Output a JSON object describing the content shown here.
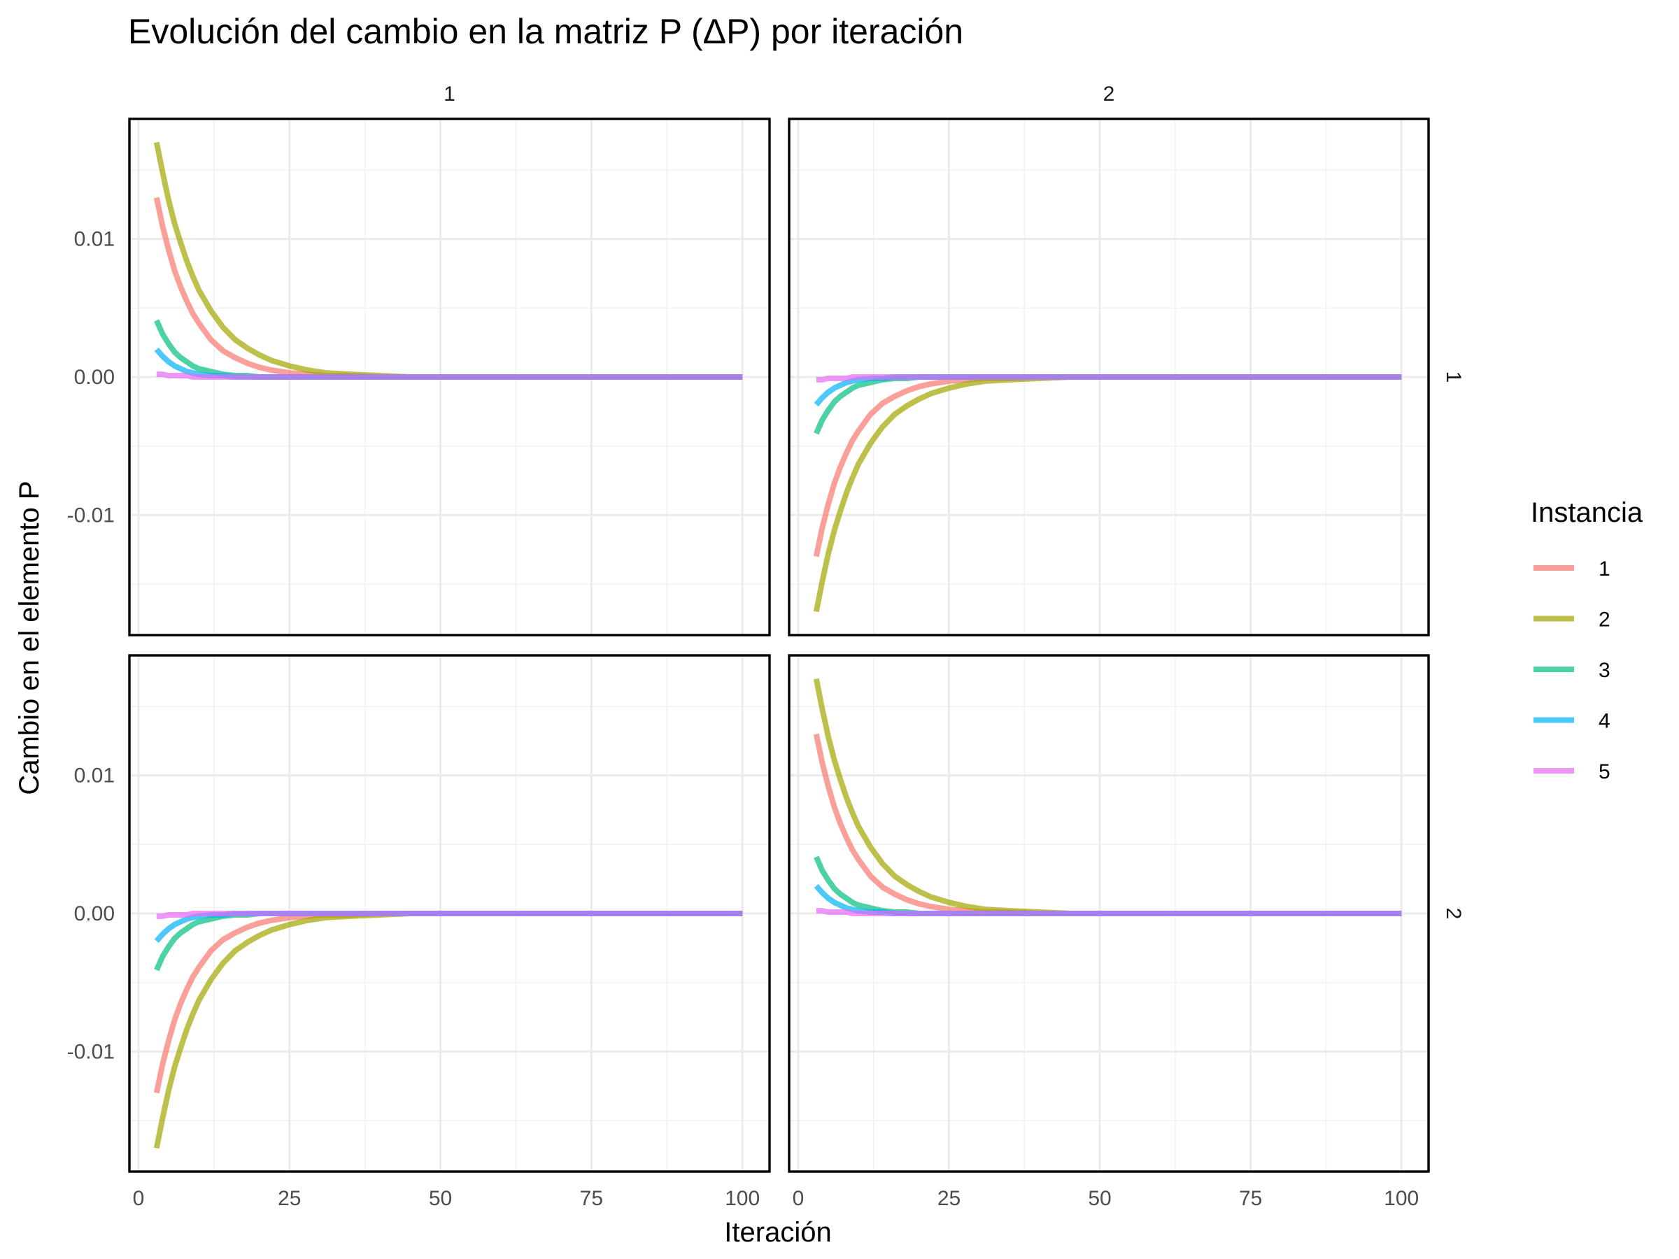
{
  "chart_data": {
    "type": "line",
    "title": "Evolución del cambio en la matriz P (ΔP) por iteración",
    "xlabel": "Iteración",
    "ylabel": "Cambio en el elemento P",
    "xlim": [
      -1.5,
      104.5
    ],
    "ylim": [
      -0.0187,
      0.0187
    ],
    "x_ticks": [
      0,
      25,
      50,
      75,
      100
    ],
    "x_tick_labels": [
      "0",
      "25",
      "50",
      "75",
      "100"
    ],
    "y_ticks": [
      -0.01,
      0.0,
      0.01
    ],
    "y_tick_labels": [
      "-0.01",
      "0.00",
      "0.01"
    ],
    "grid": true,
    "facet_columns": [
      "1",
      "2"
    ],
    "facet_rows": [
      "1",
      "2"
    ],
    "legend": {
      "title": "Instancia",
      "position": "right",
      "entries": [
        {
          "label": "1",
          "color": "#F8766D"
        },
        {
          "label": "2",
          "color": "#A3A500"
        },
        {
          "label": "3",
          "color": "#00BF7D"
        },
        {
          "label": "4",
          "color": "#00B0F6"
        },
        {
          "label": "5",
          "color": "#E76BF3"
        }
      ]
    },
    "x": [
      3,
      4,
      5,
      6,
      7,
      8,
      9,
      10,
      12,
      14,
      16,
      18,
      20,
      22,
      25,
      28,
      31,
      35,
      40,
      45,
      50,
      60,
      70,
      80,
      90,
      100
    ],
    "panels": [
      {
        "row": "1",
        "col": "1",
        "series": [
          {
            "name": "1",
            "values": [
              0.013,
              0.0109,
              0.0092,
              0.0077,
              0.0065,
              0.0055,
              0.0046,
              0.0039,
              0.0027,
              0.0019,
              0.0014,
              0.001,
              0.0007,
              0.0005,
              0.0003,
              0.0002,
              0.0001,
              0.0001,
              0.0,
              0.0,
              0.0,
              0.0,
              0.0,
              0.0,
              0.0,
              0.0
            ]
          },
          {
            "name": "2",
            "values": [
              0.017,
              0.0148,
              0.0128,
              0.0111,
              0.0097,
              0.0084,
              0.0073,
              0.0063,
              0.0048,
              0.0036,
              0.0027,
              0.0021,
              0.0016,
              0.0012,
              0.0008,
              0.0005,
              0.0003,
              0.0002,
              0.0001,
              0.0,
              0.0,
              0.0,
              0.0,
              0.0,
              0.0,
              0.0
            ]
          },
          {
            "name": "3",
            "values": [
              0.0041,
              0.0031,
              0.0024,
              0.0018,
              0.0014,
              0.0011,
              0.0008,
              0.0006,
              0.0004,
              0.0002,
              0.0001,
              0.0001,
              0.0,
              0.0,
              0.0,
              0.0,
              0.0,
              0.0,
              0.0,
              0.0,
              0.0,
              0.0,
              0.0,
              0.0,
              0.0,
              0.0
            ]
          },
          {
            "name": "4",
            "values": [
              0.002,
              0.0015,
              0.0011,
              0.0008,
              0.0006,
              0.0004,
              0.0003,
              0.0002,
              0.0001,
              0.0001,
              0.0,
              0.0,
              0.0,
              0.0,
              0.0,
              0.0,
              0.0,
              0.0,
              0.0,
              0.0,
              0.0,
              0.0,
              0.0,
              0.0,
              0.0,
              0.0
            ]
          },
          {
            "name": "5",
            "values": [
              0.0002,
              0.0002,
              0.0001,
              0.0001,
              0.0001,
              0.0001,
              0.0,
              0.0,
              0.0,
              0.0,
              0.0,
              0.0,
              0.0,
              0.0,
              0.0,
              0.0,
              0.0,
              0.0,
              0.0,
              0.0,
              0.0,
              0.0,
              0.0,
              0.0,
              0.0,
              0.0
            ]
          }
        ]
      },
      {
        "row": "1",
        "col": "2",
        "series": [
          {
            "name": "1",
            "values": [
              -0.013,
              -0.0109,
              -0.0092,
              -0.0077,
              -0.0065,
              -0.0055,
              -0.0046,
              -0.0039,
              -0.0027,
              -0.0019,
              -0.0014,
              -0.001,
              -0.0007,
              -0.0005,
              -0.0003,
              -0.0002,
              -0.0001,
              -0.0001,
              0.0,
              0.0,
              0.0,
              0.0,
              0.0,
              0.0,
              0.0,
              0.0
            ]
          },
          {
            "name": "2",
            "values": [
              -0.017,
              -0.0148,
              -0.0128,
              -0.0111,
              -0.0097,
              -0.0084,
              -0.0073,
              -0.0063,
              -0.0048,
              -0.0036,
              -0.0027,
              -0.0021,
              -0.0016,
              -0.0012,
              -0.0008,
              -0.0005,
              -0.0003,
              -0.0002,
              -0.0001,
              0.0,
              0.0,
              0.0,
              0.0,
              0.0,
              0.0,
              0.0
            ]
          },
          {
            "name": "3",
            "values": [
              -0.0041,
              -0.0031,
              -0.0024,
              -0.0018,
              -0.0014,
              -0.0011,
              -0.0008,
              -0.0006,
              -0.0004,
              -0.0002,
              -0.0001,
              -0.0001,
              0.0,
              0.0,
              0.0,
              0.0,
              0.0,
              0.0,
              0.0,
              0.0,
              0.0,
              0.0,
              0.0,
              0.0,
              0.0,
              0.0
            ]
          },
          {
            "name": "4",
            "values": [
              -0.002,
              -0.0015,
              -0.0011,
              -0.0008,
              -0.0006,
              -0.0004,
              -0.0003,
              -0.0002,
              -0.0001,
              -0.0001,
              0.0,
              0.0,
              0.0,
              0.0,
              0.0,
              0.0,
              0.0,
              0.0,
              0.0,
              0.0,
              0.0,
              0.0,
              0.0,
              0.0,
              0.0,
              0.0
            ]
          },
          {
            "name": "5",
            "values": [
              -0.0002,
              -0.0002,
              -0.0001,
              -0.0001,
              -0.0001,
              -0.0001,
              0.0,
              0.0,
              0.0,
              0.0,
              0.0,
              0.0,
              0.0,
              0.0,
              0.0,
              0.0,
              0.0,
              0.0,
              0.0,
              0.0,
              0.0,
              0.0,
              0.0,
              0.0,
              0.0,
              0.0
            ]
          }
        ]
      },
      {
        "row": "2",
        "col": "1",
        "series": [
          {
            "name": "1",
            "values": [
              -0.013,
              -0.0109,
              -0.0092,
              -0.0077,
              -0.0065,
              -0.0055,
              -0.0046,
              -0.0039,
              -0.0027,
              -0.0019,
              -0.0014,
              -0.001,
              -0.0007,
              -0.0005,
              -0.0003,
              -0.0002,
              -0.0001,
              -0.0001,
              0.0,
              0.0,
              0.0,
              0.0,
              0.0,
              0.0,
              0.0,
              0.0
            ]
          },
          {
            "name": "2",
            "values": [
              -0.017,
              -0.0148,
              -0.0128,
              -0.0111,
              -0.0097,
              -0.0084,
              -0.0073,
              -0.0063,
              -0.0048,
              -0.0036,
              -0.0027,
              -0.0021,
              -0.0016,
              -0.0012,
              -0.0008,
              -0.0005,
              -0.0003,
              -0.0002,
              -0.0001,
              0.0,
              0.0,
              0.0,
              0.0,
              0.0,
              0.0,
              0.0
            ]
          },
          {
            "name": "3",
            "values": [
              -0.0041,
              -0.0031,
              -0.0024,
              -0.0018,
              -0.0014,
              -0.0011,
              -0.0008,
              -0.0006,
              -0.0004,
              -0.0002,
              -0.0001,
              -0.0001,
              0.0,
              0.0,
              0.0,
              0.0,
              0.0,
              0.0,
              0.0,
              0.0,
              0.0,
              0.0,
              0.0,
              0.0,
              0.0,
              0.0
            ]
          },
          {
            "name": "4",
            "values": [
              -0.002,
              -0.0015,
              -0.0011,
              -0.0008,
              -0.0006,
              -0.0004,
              -0.0003,
              -0.0002,
              -0.0001,
              -0.0001,
              0.0,
              0.0,
              0.0,
              0.0,
              0.0,
              0.0,
              0.0,
              0.0,
              0.0,
              0.0,
              0.0,
              0.0,
              0.0,
              0.0,
              0.0,
              0.0
            ]
          },
          {
            "name": "5",
            "values": [
              -0.0002,
              -0.0002,
              -0.0001,
              -0.0001,
              -0.0001,
              -0.0001,
              0.0,
              0.0,
              0.0,
              0.0,
              0.0,
              0.0,
              0.0,
              0.0,
              0.0,
              0.0,
              0.0,
              0.0,
              0.0,
              0.0,
              0.0,
              0.0,
              0.0,
              0.0,
              0.0,
              0.0
            ]
          }
        ]
      },
      {
        "row": "2",
        "col": "2",
        "series": [
          {
            "name": "1",
            "values": [
              0.013,
              0.0109,
              0.0092,
              0.0077,
              0.0065,
              0.0055,
              0.0046,
              0.0039,
              0.0027,
              0.0019,
              0.0014,
              0.001,
              0.0007,
              0.0005,
              0.0003,
              0.0002,
              0.0001,
              0.0001,
              0.0,
              0.0,
              0.0,
              0.0,
              0.0,
              0.0,
              0.0,
              0.0
            ]
          },
          {
            "name": "2",
            "values": [
              0.017,
              0.0148,
              0.0128,
              0.0111,
              0.0097,
              0.0084,
              0.0073,
              0.0063,
              0.0048,
              0.0036,
              0.0027,
              0.0021,
              0.0016,
              0.0012,
              0.0008,
              0.0005,
              0.0003,
              0.0002,
              0.0001,
              0.0,
              0.0,
              0.0,
              0.0,
              0.0,
              0.0,
              0.0
            ]
          },
          {
            "name": "3",
            "values": [
              0.0041,
              0.0031,
              0.0024,
              0.0018,
              0.0014,
              0.0011,
              0.0008,
              0.0006,
              0.0004,
              0.0002,
              0.0001,
              0.0001,
              0.0,
              0.0,
              0.0,
              0.0,
              0.0,
              0.0,
              0.0,
              0.0,
              0.0,
              0.0,
              0.0,
              0.0,
              0.0,
              0.0
            ]
          },
          {
            "name": "4",
            "values": [
              0.002,
              0.0015,
              0.0011,
              0.0008,
              0.0006,
              0.0004,
              0.0003,
              0.0002,
              0.0001,
              0.0001,
              0.0,
              0.0,
              0.0,
              0.0,
              0.0,
              0.0,
              0.0,
              0.0,
              0.0,
              0.0,
              0.0,
              0.0,
              0.0,
              0.0,
              0.0,
              0.0
            ]
          },
          {
            "name": "5",
            "values": [
              0.0002,
              0.0002,
              0.0001,
              0.0001,
              0.0001,
              0.0001,
              0.0,
              0.0,
              0.0,
              0.0,
              0.0,
              0.0,
              0.0,
              0.0,
              0.0,
              0.0,
              0.0,
              0.0,
              0.0,
              0.0,
              0.0,
              0.0,
              0.0,
              0.0,
              0.0,
              0.0
            ]
          }
        ]
      }
    ]
  }
}
